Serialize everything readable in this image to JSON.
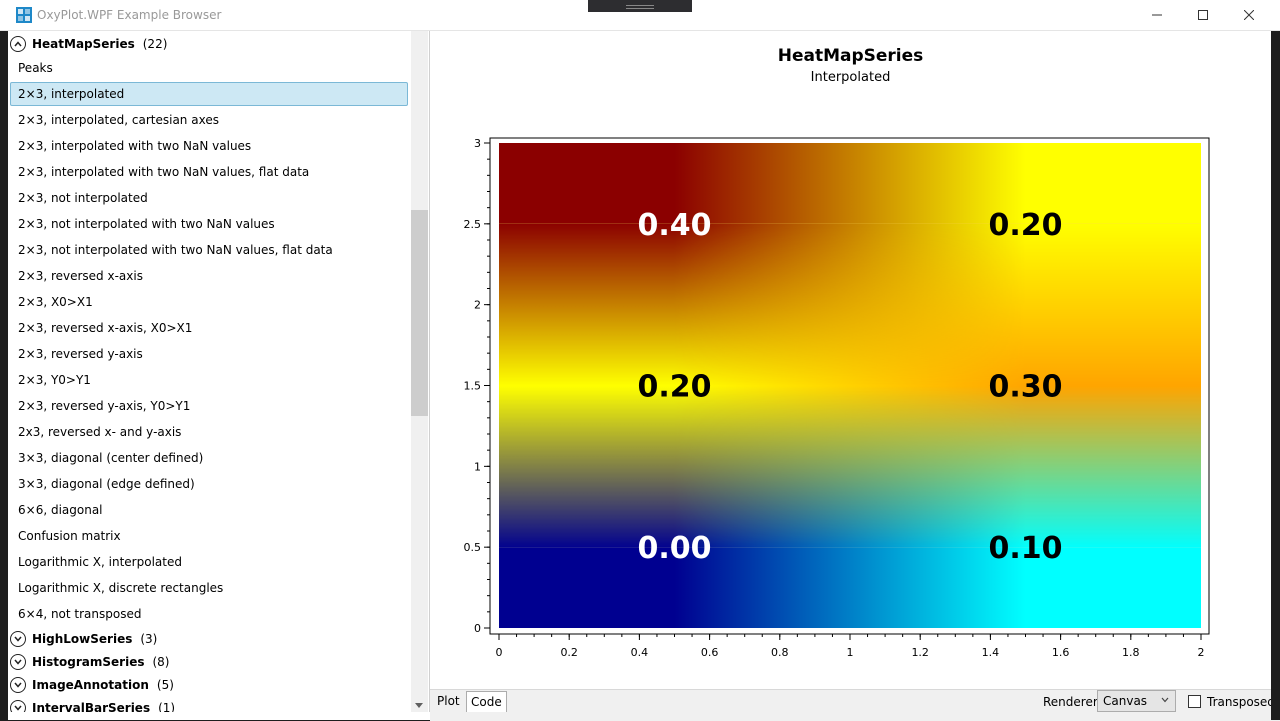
{
  "window": {
    "title": "OxyPlot.WPF Example Browser"
  },
  "sidebar": {
    "expanded_group": {
      "name": "HeatMapSeries",
      "count": "(22)"
    },
    "items": [
      {
        "label": "Peaks",
        "selected": false
      },
      {
        "label": "2×3, interpolated",
        "selected": true
      },
      {
        "label": "2×3, interpolated, cartesian axes",
        "selected": false
      },
      {
        "label": "2×3, interpolated with two NaN values",
        "selected": false
      },
      {
        "label": "2×3, interpolated with two NaN values, flat data",
        "selected": false
      },
      {
        "label": "2×3, not interpolated",
        "selected": false
      },
      {
        "label": "2×3, not interpolated with two NaN values",
        "selected": false
      },
      {
        "label": "2×3, not interpolated with two NaN values, flat data",
        "selected": false
      },
      {
        "label": "2×3, reversed x-axis",
        "selected": false
      },
      {
        "label": "2×3, X0>X1",
        "selected": false
      },
      {
        "label": "2×3, reversed x-axis, X0>X1",
        "selected": false
      },
      {
        "label": "2×3, reversed y-axis",
        "selected": false
      },
      {
        "label": "2×3, Y0>Y1",
        "selected": false
      },
      {
        "label": "2×3, reversed y-axis, Y0>Y1",
        "selected": false
      },
      {
        "label": "2x3, reversed x- and y-axis",
        "selected": false
      },
      {
        "label": "3×3, diagonal (center defined)",
        "selected": false
      },
      {
        "label": "3×3, diagonal (edge defined)",
        "selected": false
      },
      {
        "label": "6×6, diagonal",
        "selected": false
      },
      {
        "label": "Confusion matrix",
        "selected": false
      },
      {
        "label": "Logarithmic X, interpolated",
        "selected": false
      },
      {
        "label": "Logarithmic X, discrete rectangles",
        "selected": false
      },
      {
        "label": "6×4, not transposed",
        "selected": false
      }
    ],
    "collapsed_groups": [
      {
        "name": "HighLowSeries",
        "count": "(3)"
      },
      {
        "name": "HistogramSeries",
        "count": "(8)"
      },
      {
        "name": "ImageAnnotation",
        "count": "(5)"
      },
      {
        "name": "IntervalBarSeries",
        "count": "(1)"
      }
    ]
  },
  "plot": {
    "title": "HeatMapSeries",
    "subtitle": "Interpolated"
  },
  "chart_data": {
    "type": "heatmap",
    "title": "HeatMapSeries",
    "subtitle": "Interpolated",
    "x_ticks": [
      "0",
      "0.2",
      "0.4",
      "0.6",
      "0.8",
      "1",
      "1.2",
      "1.4",
      "1.6",
      "1.8",
      "2"
    ],
    "y_ticks": [
      "0",
      "0.5",
      "1",
      "1.5",
      "2",
      "2.5",
      "3"
    ],
    "xlim": [
      0,
      2
    ],
    "ylim": [
      0,
      3
    ],
    "cells": [
      {
        "x": 0.5,
        "y": 0.5,
        "value": 0.0,
        "label": "0.00"
      },
      {
        "x": 1.5,
        "y": 0.5,
        "value": 0.1,
        "label": "0.10"
      },
      {
        "x": 0.5,
        "y": 1.5,
        "value": 0.2,
        "label": "0.20"
      },
      {
        "x": 1.5,
        "y": 1.5,
        "value": 0.3,
        "label": "0.30"
      },
      {
        "x": 0.5,
        "y": 2.5,
        "value": 0.4,
        "label": "0.40"
      },
      {
        "x": 1.5,
        "y": 2.5,
        "value": 0.2,
        "label": "0.20"
      }
    ],
    "interpolated": true,
    "colors": {
      "low": "#000090",
      "cyan": "#00ffff",
      "yellow": "#ffff00",
      "orange": "#ffa500",
      "high": "#8b0000"
    }
  },
  "bottom_bar": {
    "tabs": [
      "Plot",
      "Code"
    ],
    "active_tab": "Code",
    "renderer_label": "Renderer:",
    "renderer_value": "Canvas",
    "transposed_label": "Transposed"
  }
}
